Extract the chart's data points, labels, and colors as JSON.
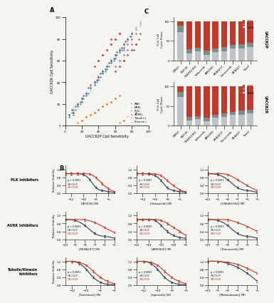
{
  "scatter": {
    "rafi_x": [
      5,
      8,
      10,
      12,
      15,
      18,
      20,
      22,
      25,
      28,
      30,
      35,
      38,
      40,
      42,
      45,
      48,
      50,
      52,
      55,
      58,
      60,
      62,
      65,
      68,
      70,
      72,
      75,
      78,
      80,
      82,
      85,
      88,
      90
    ],
    "rafi_y": [
      10,
      15,
      12,
      18,
      20,
      22,
      25,
      28,
      30,
      35,
      38,
      40,
      42,
      45,
      48,
      50,
      52,
      55,
      58,
      60,
      62,
      65,
      68,
      70,
      72,
      75,
      78,
      80,
      82,
      85,
      70,
      75,
      80,
      85
    ],
    "meki_x": [
      5,
      8,
      10,
      12,
      15,
      18,
      20,
      22,
      25,
      28,
      30,
      35,
      38,
      40,
      42,
      45,
      48,
      50,
      52,
      55,
      58,
      60,
      62,
      65,
      68,
      70
    ],
    "meki_y": [
      8,
      12,
      10,
      15,
      18,
      20,
      22,
      25,
      28,
      30,
      35,
      38,
      40,
      42,
      45,
      48,
      50,
      52,
      55,
      58,
      60,
      62,
      65,
      68,
      70,
      72
    ],
    "plki_x": [
      40,
      45,
      50,
      55,
      60,
      65,
      70,
      75,
      80,
      85,
      60,
      65,
      70,
      75,
      80
    ],
    "plki_y": [
      60,
      65,
      70,
      75,
      80,
      85,
      70,
      75,
      80,
      85,
      55,
      60,
      65,
      70,
      75
    ],
    "aurki_x": [
      35,
      40,
      45,
      50,
      55,
      60,
      65,
      70,
      75,
      80,
      85,
      55,
      60,
      65,
      70
    ],
    "aurki_y": [
      55,
      60,
      65,
      70,
      75,
      80,
      85,
      60,
      65,
      70,
      75,
      80,
      50,
      55,
      60
    ],
    "tubulini_x": [
      20,
      25,
      30,
      35,
      40,
      45,
      50,
      55,
      60,
      65,
      70,
      75,
      80,
      85
    ],
    "tubulini_y": [
      5,
      8,
      10,
      12,
      15,
      18,
      20,
      22,
      25,
      28,
      5,
      8,
      10,
      12
    ],
    "kinesini_x": [
      15,
      20,
      25,
      30,
      35,
      40,
      45,
      50,
      55,
      60,
      65,
      70,
      75,
      80
    ],
    "kinesini_y": [
      3,
      5,
      8,
      10,
      12,
      15,
      18,
      20,
      22,
      25,
      3,
      5,
      8,
      10
    ],
    "gray_x": [
      10,
      15,
      20,
      25,
      30,
      35,
      40,
      45,
      50,
      55,
      60,
      65,
      70,
      75,
      80,
      85,
      90,
      10,
      15,
      20,
      25,
      30,
      35,
      40,
      45,
      50,
      55,
      60,
      65,
      70,
      75,
      80,
      85,
      90,
      5,
      10,
      15,
      20,
      25,
      30,
      35,
      40,
      45,
      50,
      55,
      60,
      65,
      70,
      75,
      80,
      85,
      90,
      5,
      10,
      15,
      20,
      25,
      30,
      35,
      40,
      45,
      50,
      55,
      60,
      65,
      70,
      75,
      80,
      85,
      90
    ],
    "gray_y": [
      15,
      20,
      25,
      30,
      35,
      40,
      45,
      50,
      55,
      60,
      65,
      70,
      75,
      80,
      85,
      90,
      95,
      12,
      18,
      22,
      28,
      32,
      38,
      42,
      48,
      52,
      58,
      62,
      68,
      72,
      78,
      82,
      88,
      92,
      10,
      16,
      21,
      26,
      31,
      36,
      41,
      46,
      51,
      56,
      61,
      66,
      71,
      76,
      81,
      86,
      91,
      96,
      8,
      14,
      19,
      24,
      29,
      34,
      39,
      44,
      49,
      54,
      59,
      64,
      69,
      74,
      79,
      84,
      89,
      94
    ]
  },
  "bar_categories": [
    "DMSO",
    "BI2536",
    "GSK461364",
    "Volasertib",
    "AMG900",
    "MLN8237",
    "Danusertib",
    "MLN827",
    "Taxol"
  ],
  "uacc62p_g2m": [
    12,
    72,
    68,
    75,
    70,
    65,
    60,
    58,
    55
  ],
  "uacc62p_s": [
    15,
    10,
    8,
    10,
    8,
    12,
    10,
    12,
    10
  ],
  "uacc62p_g0g1": [
    73,
    18,
    24,
    15,
    22,
    23,
    30,
    30,
    35
  ],
  "uacc62r_g2m": [
    15,
    78,
    75,
    80,
    72,
    68,
    65,
    62,
    60
  ],
  "uacc62r_s": [
    12,
    8,
    8,
    8,
    8,
    10,
    8,
    10,
    8
  ],
  "uacc62r_g0g1": [
    73,
    14,
    17,
    12,
    20,
    22,
    27,
    28,
    32
  ],
  "colors": {
    "g2m": "#c0392b",
    "s": "#7f8c8d",
    "g0g1": "#bdc3c7",
    "rafi": "#2c3e50",
    "meki": "#2980b9",
    "plki": "#8e44ad",
    "aurki": "#c0392b",
    "tubulini": "#e74c3c",
    "kinesini": "#e67e22",
    "gray": "#95a5a6"
  },
  "dose_curves": {
    "bi2536": {
      "p_x": [
        -13,
        -12,
        -11,
        -10,
        -9,
        -8,
        -7,
        -6,
        -5
      ],
      "p_y": [
        1.0,
        1.0,
        1.0,
        0.95,
        0.7,
        0.3,
        0.15,
        0.1,
        0.05
      ],
      "r_y": [
        1.0,
        1.0,
        1.0,
        1.0,
        0.98,
        0.8,
        0.5,
        0.25,
        0.1
      ],
      "xlab": "[BI2536] (M)",
      "xlim": [
        -13,
        -5
      ]
    },
    "volasertib": {
      "p_x": [
        -13,
        -12,
        -11,
        -10,
        -9,
        -8,
        -7,
        -6,
        -5
      ],
      "p_y": [
        1.0,
        1.0,
        0.98,
        0.9,
        0.65,
        0.3,
        0.15,
        0.1,
        0.05
      ],
      "r_y": [
        1.0,
        1.0,
        1.0,
        0.98,
        0.9,
        0.65,
        0.4,
        0.2,
        0.08
      ],
      "xlab": "[Volasertib] (M)",
      "xlim": [
        -13,
        -5
      ]
    },
    "gsk461364": {
      "p_x": [
        -10,
        -9,
        -8,
        -7,
        -6,
        -5
      ],
      "p_y": [
        1.0,
        0.95,
        0.7,
        0.3,
        0.15,
        0.05
      ],
      "r_y": [
        1.0,
        1.0,
        0.95,
        0.7,
        0.4,
        0.15
      ],
      "xlab": "[GSK461364] (M)",
      "xlim": [
        -10,
        -5
      ]
    },
    "mln8237": {
      "p_x": [
        -10,
        -9,
        -8,
        -7,
        -6,
        -5
      ],
      "p_y": [
        1.0,
        0.95,
        0.7,
        0.3,
        0.15,
        0.05
      ],
      "r_y": [
        1.0,
        1.0,
        0.98,
        0.85,
        0.6,
        0.35
      ],
      "xlab": "[MLN8237] (M)",
      "xlim": [
        -10,
        -5
      ]
    },
    "amg900": {
      "p_x": [
        -16,
        -15,
        -14,
        -13,
        -12,
        -11,
        -10,
        -9,
        -8
      ],
      "p_y": [
        1.0,
        1.0,
        1.0,
        0.95,
        0.7,
        0.4,
        0.2,
        0.1,
        0.05
      ],
      "r_y": [
        1.0,
        1.0,
        1.0,
        1.0,
        0.95,
        0.8,
        0.6,
        0.4,
        0.2
      ],
      "xlab": "[AMG900] (M)",
      "xlim": [
        -16,
        -8
      ]
    },
    "danusertib": {
      "p_x": [
        -10,
        -9,
        -8,
        -7,
        -6,
        -5
      ],
      "p_y": [
        1.0,
        0.95,
        0.7,
        0.3,
        0.15,
        0.05
      ],
      "r_y": [
        1.0,
        1.0,
        0.98,
        0.85,
        0.65,
        0.4
      ],
      "xlab": "[Danusertib] (M)",
      "xlim": [
        -10,
        -5
      ]
    },
    "docetaxel": {
      "p_x": [
        -13,
        -12,
        -11,
        -10,
        -9,
        -8,
        -7,
        -6
      ],
      "p_y": [
        1.2,
        1.2,
        1.1,
        0.8,
        0.4,
        0.15,
        0.05,
        0.02
      ],
      "r_y": [
        1.2,
        1.2,
        1.15,
        1.0,
        0.7,
        0.4,
        0.2,
        0.08
      ],
      "xlab": "[Docetaxel] (M)",
      "xlim": [
        -13,
        -6
      ]
    },
    "ispinesib": {
      "p_x": [
        -13,
        -12,
        -11,
        -10,
        -9,
        -8,
        -7,
        -6
      ],
      "p_y": [
        1.2,
        1.2,
        1.1,
        0.8,
        0.4,
        0.15,
        0.05,
        0.02
      ],
      "r_y": [
        1.2,
        1.2,
        1.15,
        1.0,
        0.7,
        0.4,
        0.2,
        0.08
      ],
      "xlab": "[Ispinesib] (M)",
      "xlim": [
        -13,
        -6
      ]
    },
    "mebendazole": {
      "p_x": [
        -10,
        -9,
        -8,
        -7,
        -6,
        -5
      ],
      "p_y": [
        1.2,
        1.2,
        1.1,
        0.9,
        0.6,
        0.2
      ],
      "r_y": [
        1.2,
        1.2,
        1.15,
        1.05,
        0.85,
        0.6
      ],
      "xlab": "[Mebendazole] (M)",
      "xlim": [
        -10,
        -5
      ]
    }
  },
  "curve_color_p": "#2c3e50",
  "curve_color_r": "#c0392b",
  "bg_color": "#f5f5f0"
}
